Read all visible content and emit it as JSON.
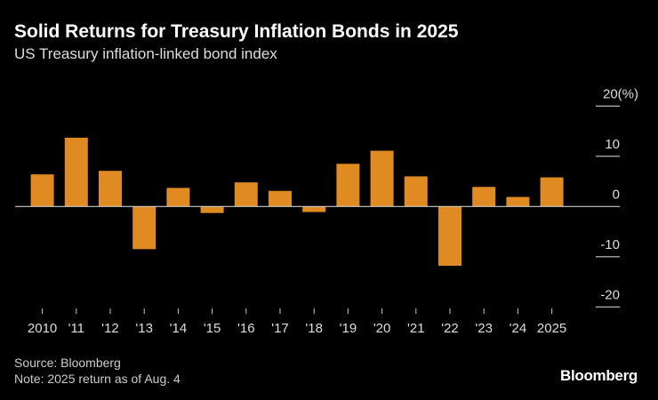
{
  "chart_data": {
    "type": "bar",
    "title": "Solid Returns for Treasury Inflation Bonds in 2025",
    "subtitle": "US Treasury inflation-linked bond index",
    "categories": [
      "2010",
      "'11",
      "'12",
      "'13",
      "'14",
      "'15",
      "'16",
      "'17",
      "'18",
      "'19",
      "'20",
      "'21",
      "'22",
      "'23",
      "'24",
      "2025"
    ],
    "values": [
      6.4,
      13.7,
      7.1,
      -8.5,
      3.7,
      -1.3,
      4.8,
      3.1,
      -1.1,
      8.5,
      11.1,
      6.0,
      -11.8,
      3.9,
      1.9,
      5.8
    ],
    "yticks": [
      "20(%)",
      "10",
      "0",
      "-10",
      "-20"
    ],
    "ytick_values": [
      20,
      10,
      0,
      -10,
      -20
    ],
    "ylim": [
      -20,
      20
    ],
    "xlabel": "",
    "ylabel": "",
    "grid": false,
    "bar_color": "#e08a22"
  },
  "footer": {
    "source": "Source: Bloomberg",
    "note": "Note: 2025 return as of Aug. 4",
    "logo": "Bloomberg"
  }
}
